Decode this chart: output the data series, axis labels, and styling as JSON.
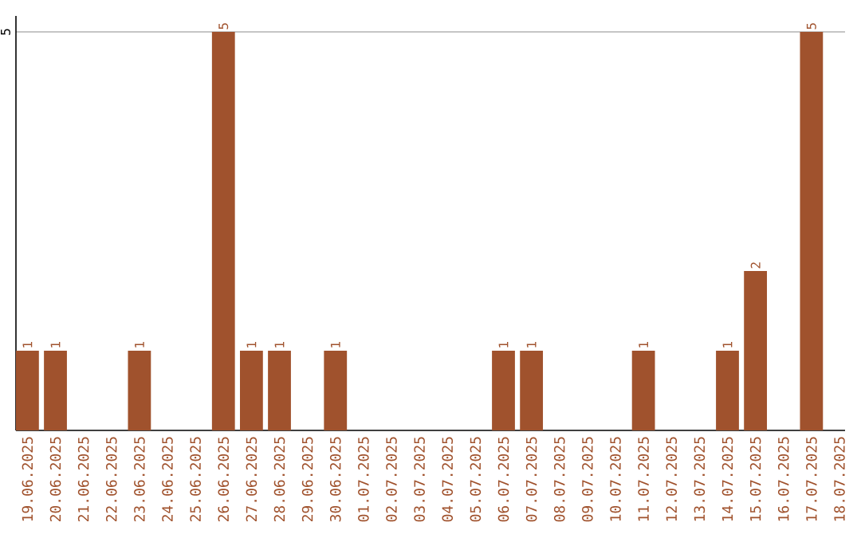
{
  "chart_data": {
    "type": "bar",
    "categories": [
      "19.06.2025",
      "20.06.2025",
      "21.06.2025",
      "22.06.2025",
      "23.06.2025",
      "24.06.2025",
      "25.06.2025",
      "26.06.2025",
      "27.06.2025",
      "28.06.2025",
      "29.06.2025",
      "30.06.2025",
      "01.07.2025",
      "02.07.2025",
      "03.07.2025",
      "04.07.2025",
      "05.07.2025",
      "06.07.2025",
      "07.07.2025",
      "08.07.2025",
      "09.07.2025",
      "10.07.2025",
      "11.07.2025",
      "12.07.2025",
      "13.07.2025",
      "14.07.2025",
      "15.07.2025",
      "16.07.2025",
      "17.07.2025",
      "18.07.2025"
    ],
    "values": [
      1,
      1,
      0,
      0,
      1,
      0,
      0,
      5,
      1,
      1,
      0,
      1,
      0,
      0,
      0,
      0,
      0,
      1,
      1,
      0,
      0,
      0,
      1,
      0,
      0,
      1,
      2,
      0,
      5,
      0
    ],
    "value_labels": [
      "1",
      "1",
      null,
      null,
      "1",
      null,
      null,
      "5",
      "1",
      "1",
      null,
      "1",
      null,
      null,
      null,
      null,
      null,
      "1",
      "1",
      null,
      null,
      null,
      "1",
      null,
      null,
      "1",
      "2",
      null,
      "5",
      null
    ],
    "color": "#a0522d",
    "ylim": [
      0,
      5.2
    ],
    "yticks": [
      5
    ],
    "grid": "y"
  }
}
